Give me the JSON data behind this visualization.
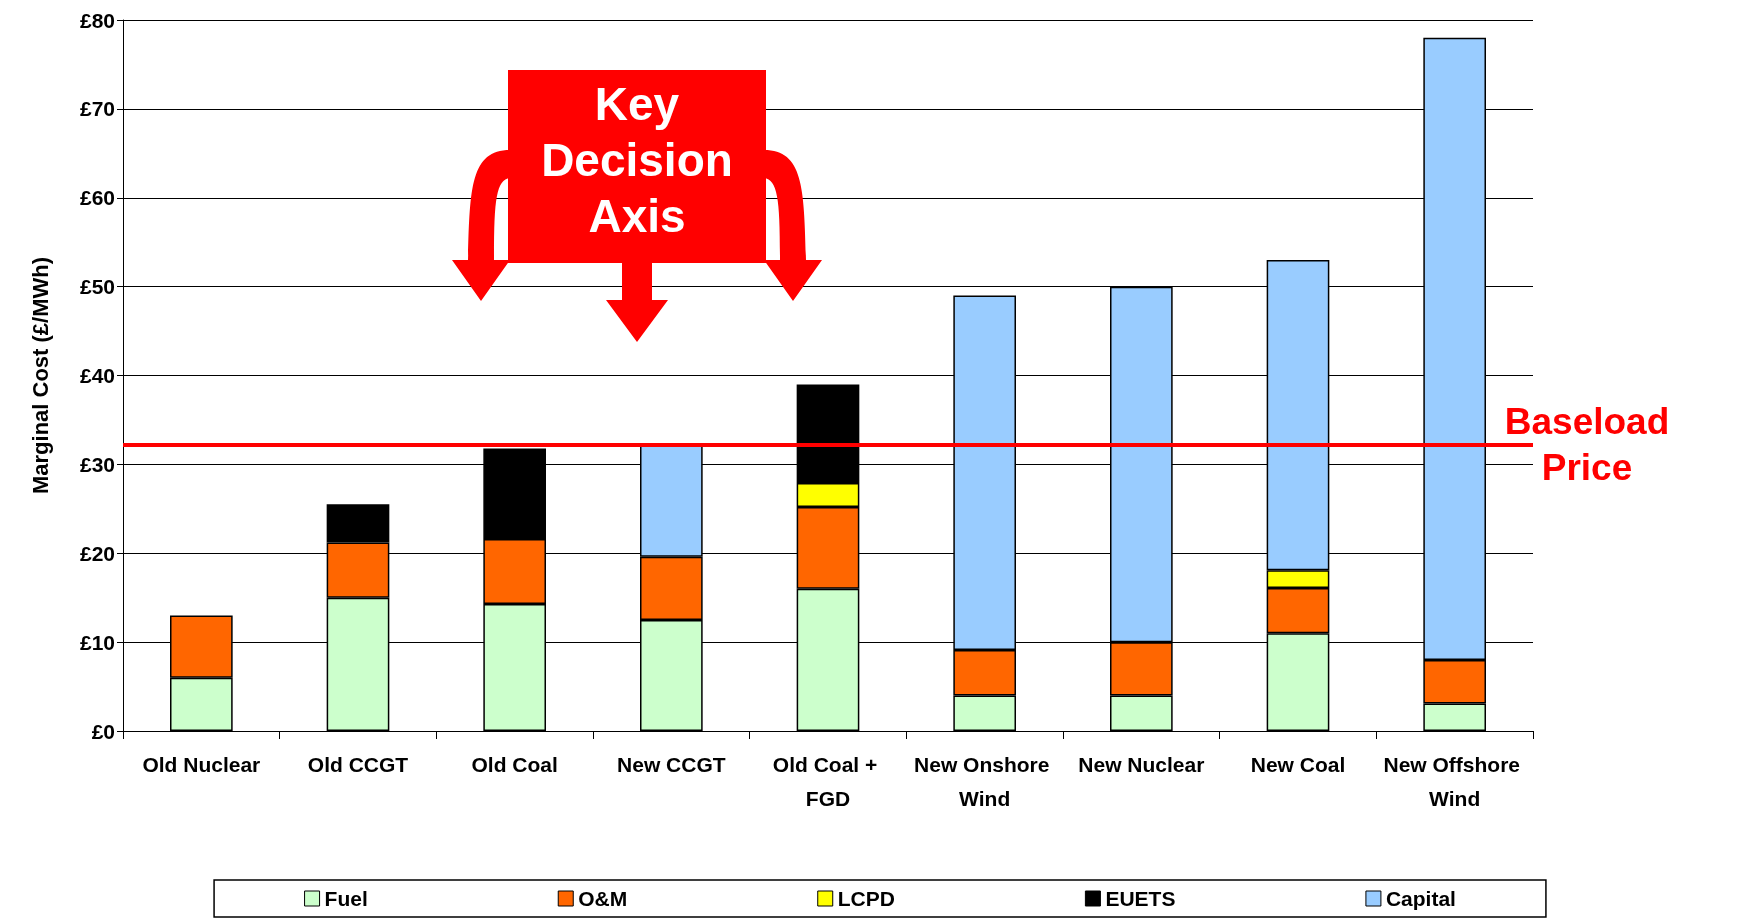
{
  "chart_data": {
    "type": "bar",
    "stacked": true,
    "ylabel": "Marginal Cost (£/MWh)",
    "categories": [
      "Old Nuclear",
      "Old CCGT",
      "Old Coal",
      "New CCGT",
      "Old Coal + FGD",
      "New Onshore Wind",
      "New Nuclear",
      "New Coal",
      "New Offshore Wind"
    ],
    "series": [
      {
        "name": "Fuel",
        "color": "#ccffcc",
        "values": [
          6,
          15,
          14.3,
          12.5,
          16,
          4,
          4,
          11,
          3.1
        ]
      },
      {
        "name": "O&M",
        "color": "#ff6600",
        "values": [
          7,
          6.2,
          7.3,
          7.1,
          9.2,
          5.1,
          6,
          5.1,
          4.9
        ]
      },
      {
        "name": "LCPD",
        "color": "#ffff00",
        "values": [
          null,
          null,
          null,
          null,
          2.7,
          null,
          null,
          2,
          null
        ]
      },
      {
        "name": "EUETS",
        "color": "#000000",
        "values": [
          null,
          4.3,
          10.2,
          null,
          11.1,
          null,
          null,
          null,
          null
        ]
      },
      {
        "name": "Capital",
        "color": "#99ccff",
        "values": [
          null,
          null,
          null,
          12.6,
          null,
          39.9,
          40,
          34.9,
          70
        ]
      }
    ],
    "ylim": [
      0,
      80
    ],
    "yticks": [
      {
        "value": 0,
        "label": "£0"
      },
      {
        "value": 10,
        "label": "£10"
      },
      {
        "value": 20,
        "label": "£20"
      },
      {
        "value": 30,
        "label": "£30"
      },
      {
        "value": 40,
        "label": "£40"
      },
      {
        "value": 50,
        "label": "£50"
      },
      {
        "value": 60,
        "label": "£60"
      },
      {
        "value": 70,
        "label": "£70"
      },
      {
        "value": 80,
        "label": "£80"
      }
    ],
    "grid": "y",
    "legend": "bottom",
    "ref_lines": [
      {
        "axis": "y",
        "value": 32.2,
        "label": "Baseload Price",
        "color": "#ff0000"
      }
    ],
    "annotations": [
      "Key Decision Axis"
    ]
  }
}
